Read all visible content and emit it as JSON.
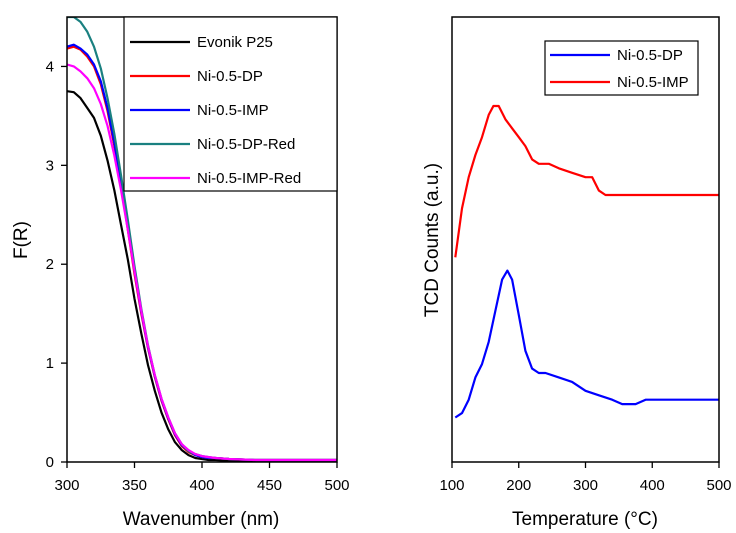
{
  "chart_data": [
    {
      "type": "line",
      "title": "",
      "xlabel": "Wavenumber (nm)",
      "ylabel": "F(R)",
      "xlim": [
        300,
        500
      ],
      "ylim": [
        0,
        4.5
      ],
      "xticks": [
        300,
        350,
        400,
        450,
        500
      ],
      "yticks": [
        0,
        1,
        2,
        3,
        4
      ],
      "legend_position": "top-right",
      "grid": false,
      "series": [
        {
          "name": "Evonik P25",
          "color": "#000000",
          "x": [
            300,
            305,
            310,
            315,
            320,
            325,
            330,
            335,
            340,
            345,
            350,
            355,
            360,
            365,
            370,
            375,
            380,
            385,
            390,
            395,
            400,
            405,
            410,
            420,
            440,
            460,
            480,
            500
          ],
          "y": [
            3.75,
            3.74,
            3.68,
            3.58,
            3.48,
            3.3,
            3.05,
            2.75,
            2.4,
            2.05,
            1.65,
            1.3,
            0.98,
            0.72,
            0.5,
            0.33,
            0.2,
            0.12,
            0.07,
            0.04,
            0.03,
            0.02,
            0.02,
            0.01,
            0.01,
            0.01,
            0.01,
            0.01
          ]
        },
        {
          "name": "Ni-0.5-DP",
          "color": "#ff0000",
          "x": [
            300,
            305,
            310,
            315,
            320,
            325,
            330,
            335,
            340,
            345,
            350,
            355,
            360,
            365,
            370,
            375,
            380,
            385,
            390,
            395,
            400,
            405,
            410,
            420,
            440,
            460,
            480,
            500
          ],
          "y": [
            4.18,
            4.2,
            4.17,
            4.1,
            4.0,
            3.82,
            3.55,
            3.2,
            2.8,
            2.35,
            1.9,
            1.5,
            1.15,
            0.86,
            0.62,
            0.43,
            0.27,
            0.16,
            0.1,
            0.07,
            0.05,
            0.04,
            0.04,
            0.03,
            0.02,
            0.02,
            0.02,
            0.02
          ]
        },
        {
          "name": "Ni-0.5-IMP",
          "color": "#0000ff",
          "x": [
            300,
            305,
            310,
            315,
            320,
            325,
            330,
            335,
            340,
            345,
            350,
            355,
            360,
            365,
            370,
            375,
            380,
            385,
            390,
            395,
            400,
            405,
            410,
            420,
            440,
            460,
            480,
            500
          ],
          "y": [
            4.2,
            4.22,
            4.18,
            4.12,
            4.02,
            3.85,
            3.58,
            3.23,
            2.82,
            2.38,
            1.93,
            1.52,
            1.16,
            0.87,
            0.63,
            0.44,
            0.28,
            0.17,
            0.11,
            0.07,
            0.05,
            0.04,
            0.04,
            0.03,
            0.02,
            0.02,
            0.02,
            0.02
          ]
        },
        {
          "name": "Ni-0.5-DP-Red",
          "color": "#1a8080",
          "x": [
            300,
            305,
            310,
            315,
            320,
            325,
            330,
            335,
            340,
            345,
            350,
            355,
            360,
            365,
            370,
            375,
            380,
            385,
            390,
            395,
            400,
            405,
            410,
            420,
            440,
            460,
            480,
            500
          ],
          "y": [
            4.5,
            4.5,
            4.45,
            4.35,
            4.2,
            3.98,
            3.68,
            3.32,
            2.9,
            2.45,
            1.98,
            1.55,
            1.18,
            0.88,
            0.64,
            0.45,
            0.29,
            0.18,
            0.11,
            0.08,
            0.06,
            0.05,
            0.04,
            0.03,
            0.02,
            0.02,
            0.02,
            0.02
          ]
        },
        {
          "name": "Ni-0.5-IMP-Red",
          "color": "#ff00ff",
          "x": [
            300,
            305,
            310,
            315,
            320,
            325,
            330,
            335,
            340,
            345,
            350,
            355,
            360,
            365,
            370,
            375,
            380,
            385,
            390,
            395,
            400,
            405,
            410,
            420,
            440,
            460,
            480,
            500
          ],
          "y": [
            4.02,
            4.0,
            3.95,
            3.88,
            3.78,
            3.62,
            3.4,
            3.1,
            2.75,
            2.35,
            1.93,
            1.53,
            1.17,
            0.88,
            0.64,
            0.45,
            0.29,
            0.18,
            0.12,
            0.08,
            0.06,
            0.05,
            0.04,
            0.03,
            0.02,
            0.02,
            0.02,
            0.02
          ]
        }
      ]
    },
    {
      "type": "line",
      "title": "",
      "xlabel": "Temperature (°C)",
      "ylabel": "TCD Counts (a.u.)",
      "xlim": [
        100,
        500
      ],
      "ylim": [
        0,
        1
      ],
      "xticks": [
        100,
        200,
        300,
        400,
        500
      ],
      "yticks": [],
      "legend_position": "top-right",
      "grid": false,
      "series": [
        {
          "name": "Ni-0.5-DP",
          "color": "#0000ff",
          "x": [
            105,
            115,
            125,
            135,
            145,
            155,
            165,
            175,
            183,
            190,
            200,
            210,
            220,
            230,
            240,
            260,
            280,
            300,
            320,
            340,
            355,
            365,
            375,
            390,
            420,
            460,
            500
          ],
          "y": [
            0.1,
            0.11,
            0.14,
            0.19,
            0.22,
            0.27,
            0.34,
            0.41,
            0.43,
            0.41,
            0.33,
            0.25,
            0.21,
            0.2,
            0.2,
            0.19,
            0.18,
            0.16,
            0.15,
            0.14,
            0.13,
            0.13,
            0.13,
            0.14,
            0.14,
            0.14,
            0.14
          ]
        },
        {
          "name": "Ni-0.5-IMP",
          "color": "#ff0000",
          "x": [
            105,
            115,
            125,
            135,
            145,
            155,
            162,
            170,
            180,
            190,
            200,
            210,
            220,
            230,
            245,
            260,
            280,
            300,
            310,
            320,
            330,
            345,
            360,
            385,
            420,
            460,
            500
          ],
          "y": [
            0.46,
            0.57,
            0.64,
            0.69,
            0.73,
            0.78,
            0.8,
            0.8,
            0.77,
            0.75,
            0.73,
            0.71,
            0.68,
            0.67,
            0.67,
            0.66,
            0.65,
            0.64,
            0.64,
            0.61,
            0.6,
            0.6,
            0.6,
            0.6,
            0.6,
            0.6,
            0.6
          ]
        }
      ]
    }
  ]
}
